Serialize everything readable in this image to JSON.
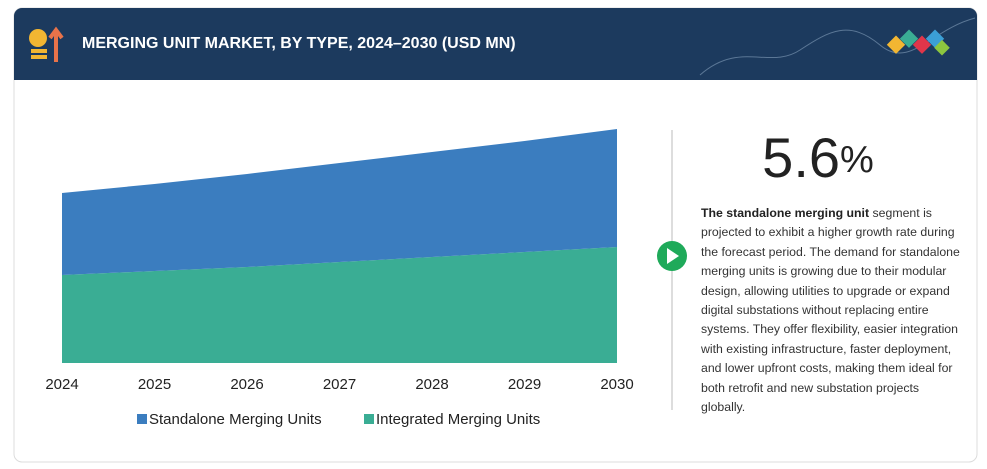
{
  "header": {
    "title": "MERGING UNIT MARKET, BY TYPE, 2024–2030 (USD MN)"
  },
  "chart_data": {
    "type": "area",
    "stacked": true,
    "categories": [
      "2024",
      "2025",
      "2026",
      "2027",
      "2028",
      "2029",
      "2030"
    ],
    "series": [
      {
        "name": "Standalone Merging Units",
        "color": "#3b7dbf",
        "values": [
          82,
          87,
          93,
          99,
          105,
          111,
          118
        ]
      },
      {
        "name": "Integrated Merging Units",
        "color": "#3aad94",
        "values": [
          88,
          92,
          96,
          101,
          106,
          111,
          116
        ]
      }
    ],
    "ylim": [
      0,
      240
    ]
  },
  "highlight": {
    "value": "5.6",
    "unit": "%",
    "lead": "The standalone merging unit",
    "text": " segment is projected to exhibit a higher growth rate during the forecast period. The demand for standalone merging units is growing due to their modular design, allowing utilities to upgrade or expand digital substations without replacing entire systems. They offer flexibility, easier integration with existing infrastructure, faster deployment, and lower upfront costs, making them ideal for both retrofit and new substation projects globally."
  }
}
